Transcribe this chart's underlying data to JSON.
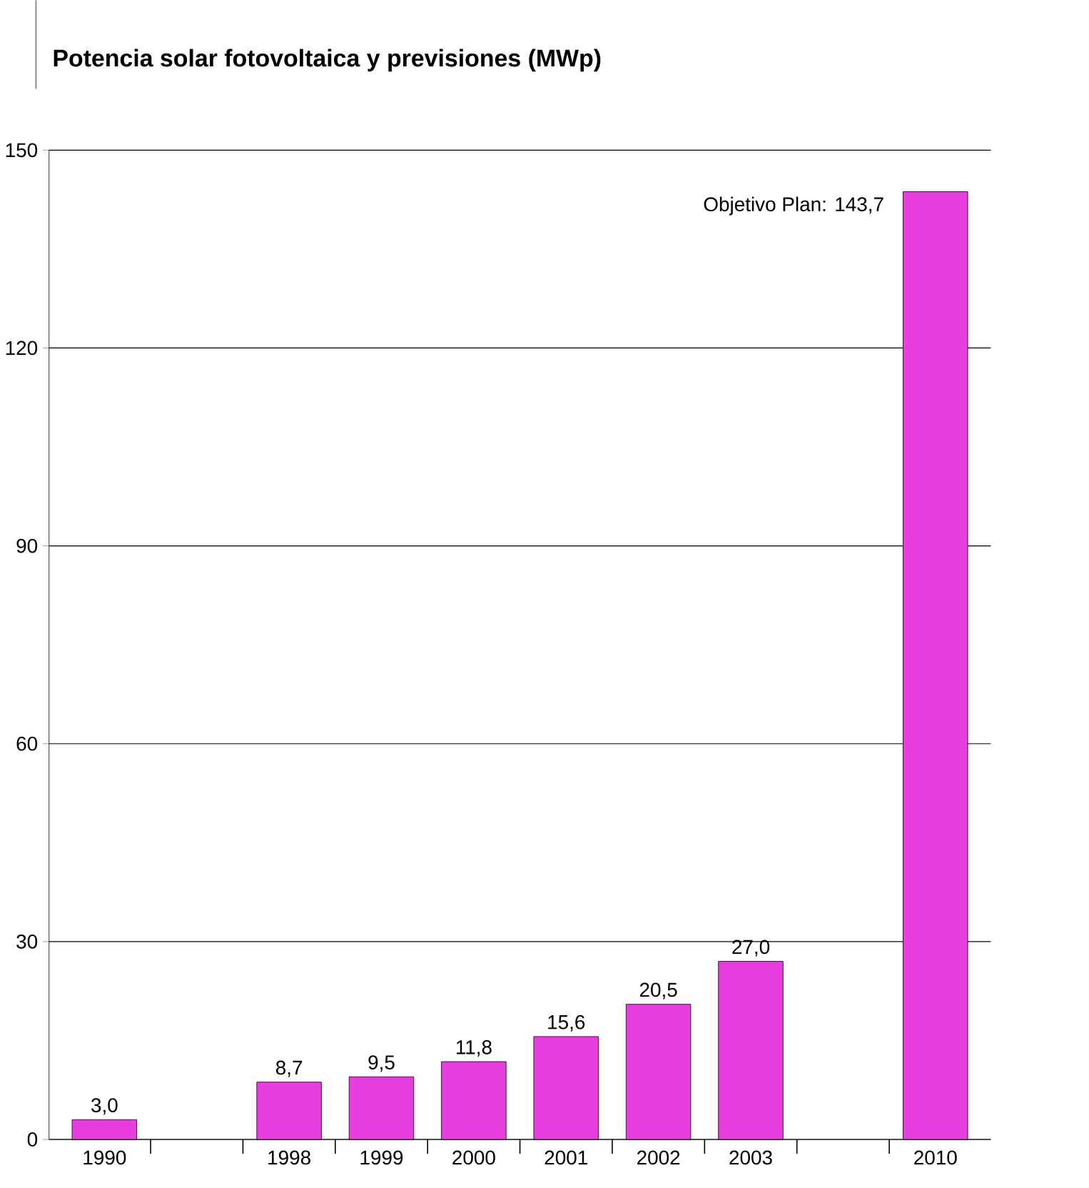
{
  "chart_data": {
    "type": "bar",
    "title": "Potencia solar fotovoltaica y previsiones (MWp)",
    "categories": [
      "1990",
      null,
      "1998",
      "1999",
      "2000",
      "2001",
      "2002",
      "2003",
      null,
      "2010"
    ],
    "values": [
      3.0,
      null,
      8.7,
      9.5,
      11.8,
      15.6,
      20.5,
      27.0,
      null,
      143.7
    ],
    "value_labels": [
      "3,0",
      null,
      "8,7",
      "9,5",
      "11,8",
      "15,6",
      "20,5",
      "27,0",
      null,
      null
    ],
    "color": "#e83ee0",
    "ylim": [
      0,
      150
    ],
    "yticks": [
      0,
      30,
      60,
      90,
      120,
      150
    ],
    "grid": "y",
    "annotations": [
      {
        "text": "Objetivo Plan: 143,7",
        "x": "2010",
        "y": 143.7
      }
    ]
  }
}
